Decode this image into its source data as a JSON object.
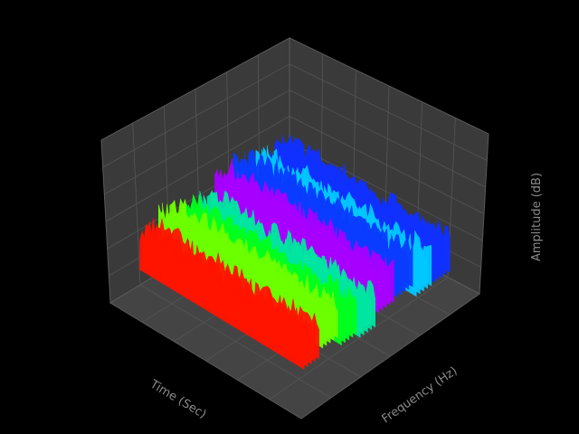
{
  "chart_data": {
    "type": "surface3d",
    "x_label": "Time (Sec)",
    "y_label": "Frequency (Hz)",
    "z_label": "Amplitude (dB)",
    "band_colors": [
      "#ff1400",
      "#6cff00",
      "#00ff1e",
      "#00e6a0",
      "#a600ff",
      "#0a3cff",
      "#00c8ff",
      "#1030ff"
    ]
  }
}
